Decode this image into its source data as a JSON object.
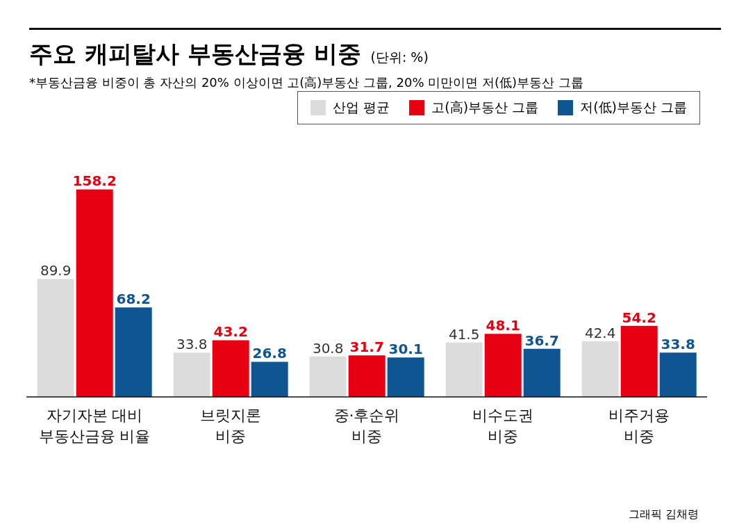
{
  "chart_data": {
    "type": "bar",
    "title": "주요 캐피탈사 부동산금융 비중",
    "subtitle": "(단위: %)",
    "annotations": [
      "*부동산금융 비중이 총 자산의 20% 이상이면 고(高)부동산 그룹, 20% 미만이면 저(低)부동산 그룹",
      "그래픽 김채령"
    ],
    "categories": [
      "자기자본 대비\n부동산금융 비율",
      "브릿지론\n비중",
      "중·후순위\n비중",
      "비수도권\n비중",
      "비주거용\n비중"
    ],
    "series": [
      {
        "name": "산업 평균",
        "color": "#dcdcdc",
        "values": [
          89.9,
          33.8,
          30.8,
          41.5,
          42.4
        ]
      },
      {
        "name": "고(高)부동산 그룹",
        "color": "#e60012",
        "values": [
          158.2,
          43.2,
          31.7,
          48.1,
          54.2
        ]
      },
      {
        "name": "저(低)부동산 그룹",
        "color": "#0f5591",
        "values": [
          68.2,
          26.8,
          30.1,
          36.7,
          33.8
        ]
      }
    ],
    "data_labels": true,
    "legend": "top right",
    "grid": false
  }
}
